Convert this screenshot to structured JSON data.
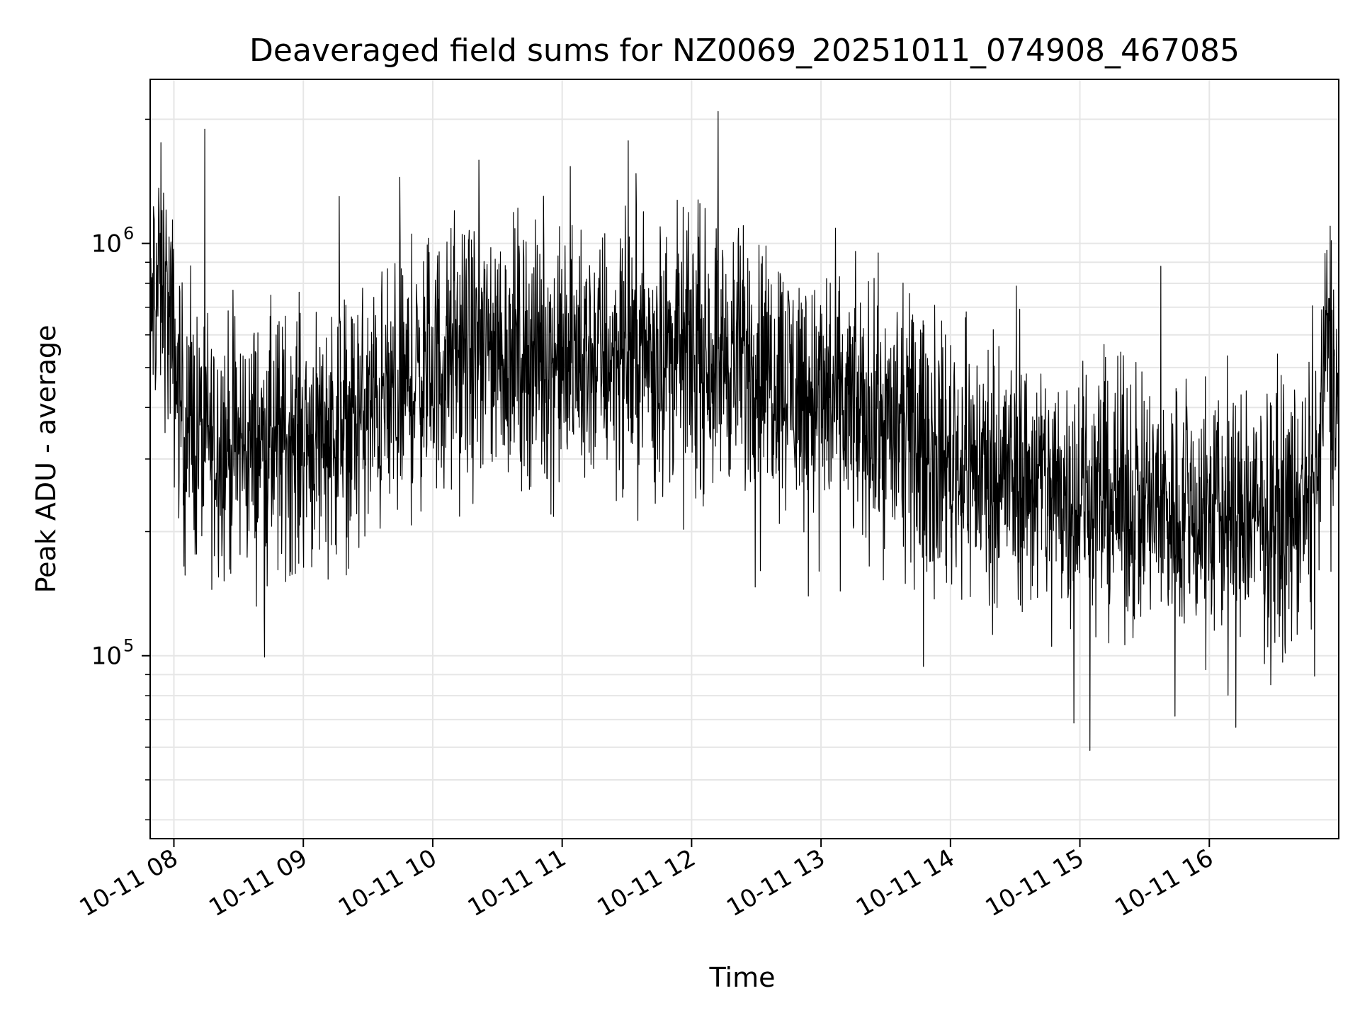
{
  "chart_data": {
    "type": "line",
    "title": "Deaveraged field sums for NZ0069_20251011_074908_467085",
    "xlabel": "Time",
    "ylabel": "Peak ADU - average",
    "yscale": "log",
    "xlim": [
      "2025-10-11 07:49",
      "2025-10-11 17:00"
    ],
    "ylim": [
      36000,
      2500000
    ],
    "x_ticks": [
      {
        "value": "2025-10-11 08:00",
        "label": "10-11 08"
      },
      {
        "value": "2025-10-11 09:00",
        "label": "10-11 09"
      },
      {
        "value": "2025-10-11 10:00",
        "label": "10-11 10"
      },
      {
        "value": "2025-10-11 11:00",
        "label": "10-11 11"
      },
      {
        "value": "2025-10-11 12:00",
        "label": "10-11 12"
      },
      {
        "value": "2025-10-11 13:00",
        "label": "10-11 13"
      },
      {
        "value": "2025-10-11 14:00",
        "label": "10-11 14"
      },
      {
        "value": "2025-10-11 15:00",
        "label": "10-11 15"
      },
      {
        "value": "2025-10-11 16:00",
        "label": "10-11 16"
      }
    ],
    "y_ticks": [
      {
        "value": 100000,
        "base": "10",
        "exp": "5"
      },
      {
        "value": 1000000,
        "base": "10",
        "exp": "6"
      }
    ],
    "grid": true,
    "legend": "none",
    "line_color": "#000000",
    "series": [
      {
        "x": [
          "2025-10-11 07:49",
          "2025-10-11 07:50",
          "2025-10-11 07:55",
          "2025-10-11 08:05",
          "2025-10-11 08:30",
          "2025-10-11 09:00",
          "2025-10-11 09:30",
          "2025-10-11 10:00",
          "2025-10-11 10:30",
          "2025-10-11 11:00",
          "2025-10-11 11:30",
          "2025-10-11 12:00",
          "2025-10-11 12:30",
          "2025-10-11 13:00",
          "2025-10-11 13:30",
          "2025-10-11 14:00",
          "2025-10-11 14:30",
          "2025-10-11 15:00",
          "2025-10-11 15:30",
          "2025-10-11 16:00",
          "2025-10-11 16:30",
          "2025-10-11 16:50",
          "2025-10-11 16:55",
          "2025-10-11 17:00"
        ],
        "y": [
          450000,
          750000,
          820000,
          350000,
          320000,
          340000,
          380000,
          500000,
          560000,
          520000,
          540000,
          550000,
          520000,
          420000,
          360000,
          300000,
          270000,
          250000,
          230000,
          220000,
          210000,
          240000,
          650000,
          380000
        ]
      }
    ]
  }
}
